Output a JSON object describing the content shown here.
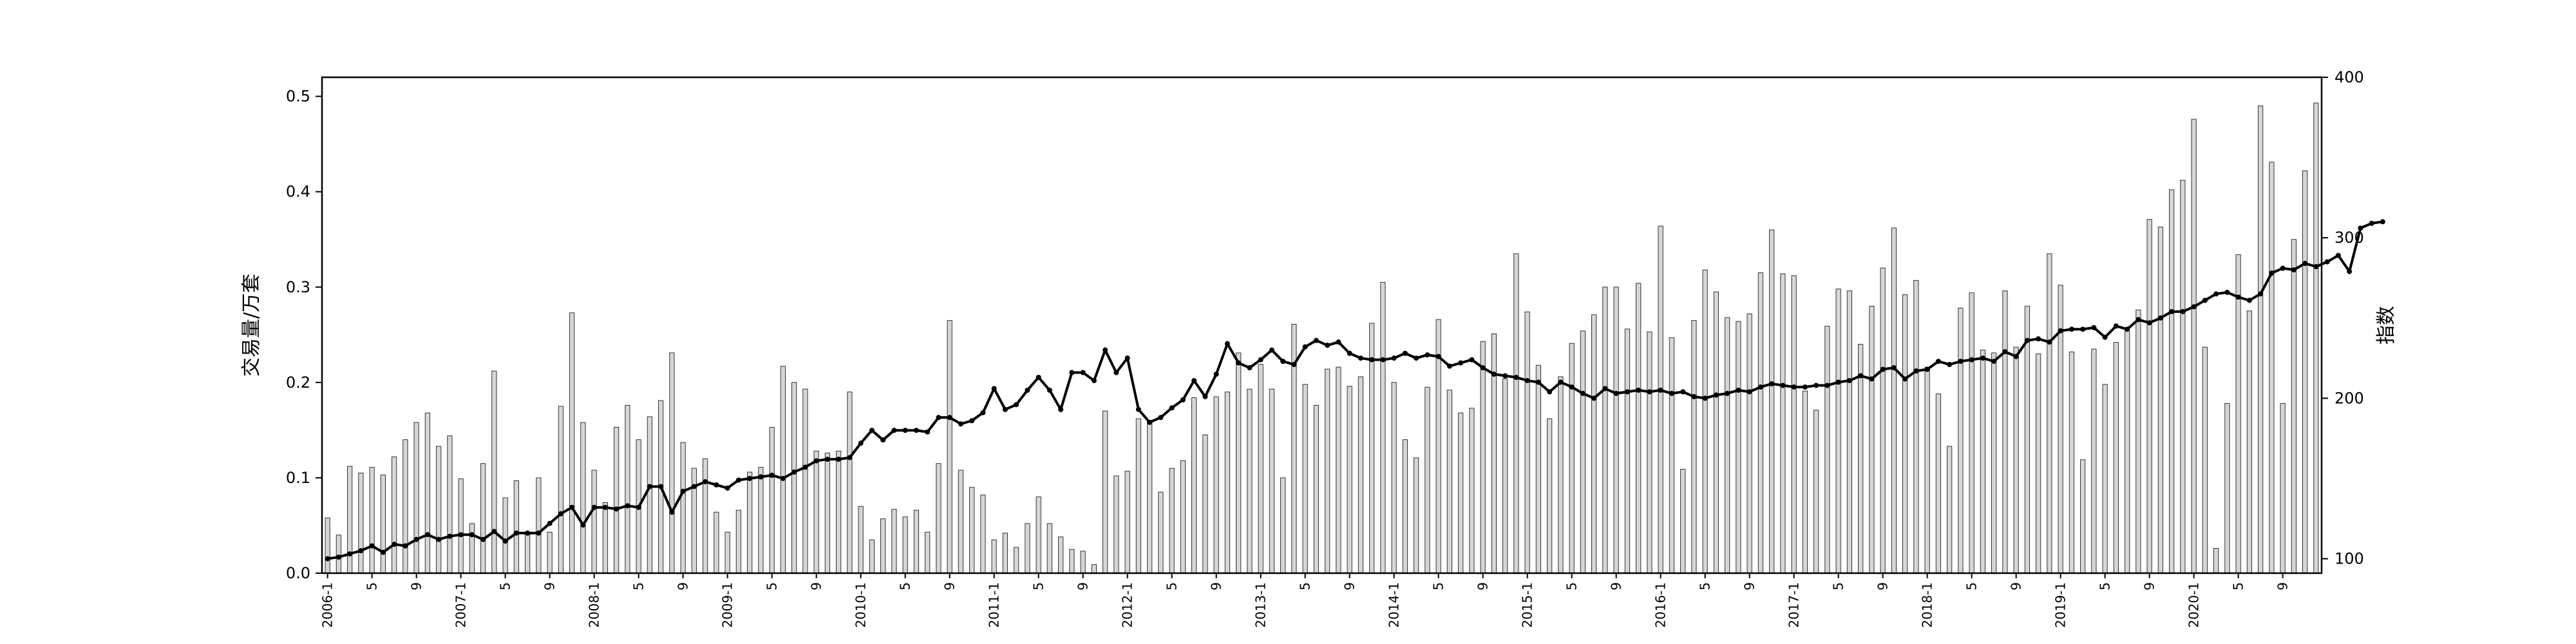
{
  "chart_data": {
    "type": "bar+line",
    "left_axis": {
      "label": "交易量/万套",
      "ylim": [
        0,
        0.52
      ],
      "ticks": [
        0.0,
        0.1,
        0.2,
        0.3,
        0.4,
        0.5
      ]
    },
    "right_axis": {
      "label": "指数",
      "ylim": [
        91,
        400
      ],
      "ticks": [
        100,
        200,
        300,
        400
      ]
    },
    "x_tick_labels": [
      "2006-1",
      "5",
      "9",
      "2007-1",
      "5",
      "9",
      "2008-1",
      "5",
      "9",
      "2009-1",
      "5",
      "9",
      "2010-1",
      "5",
      "9",
      "2011-1",
      "5",
      "9",
      "2012-1",
      "5",
      "9",
      "2013-1",
      "5",
      "9",
      "2014-1",
      "5",
      "9",
      "2015-1",
      "5",
      "9",
      "2016-1",
      "5",
      "9",
      "2017-1",
      "5",
      "9",
      "2018-1",
      "5",
      "9",
      "2019-1",
      "5",
      "9",
      "2020-1",
      "5",
      "9"
    ],
    "x_tick_months": [
      1,
      5,
      9,
      13,
      17,
      21,
      25,
      29,
      33,
      37,
      41,
      45,
      49,
      53,
      57,
      61,
      65,
      69,
      73,
      77,
      81,
      85,
      89,
      93,
      97,
      101,
      105,
      109,
      113,
      117,
      121,
      125,
      129,
      133,
      137,
      141,
      145,
      149,
      153,
      157,
      161,
      165,
      169,
      173,
      177
    ],
    "series": [
      {
        "type": "bar",
        "axis": "left",
        "values": [
          0.058,
          0.04,
          0.112,
          0.105,
          0.111,
          0.103,
          0.122,
          0.14,
          0.158,
          0.168,
          0.133,
          0.144,
          0.099,
          0.052,
          0.115,
          0.212,
          0.079,
          0.097,
          0.04,
          0.1,
          0.043,
          0.175,
          0.273,
          0.158,
          0.108,
          0.074,
          0.153,
          0.176,
          0.14,
          0.164,
          0.181,
          0.231,
          0.137,
          0.11,
          0.12,
          0.064,
          0.043,
          0.066,
          0.106,
          0.111,
          0.153,
          0.217,
          0.2,
          0.193,
          0.128,
          0.126,
          0.128,
          0.19,
          0.07,
          0.035,
          0.057,
          0.067,
          0.059,
          0.066,
          0.043,
          0.115,
          0.265,
          0.108,
          0.09,
          0.082,
          0.035,
          0.042,
          0.027,
          0.052,
          0.08,
          0.052,
          0.038,
          0.025,
          0.023,
          0.009,
          0.17,
          0.102,
          0.107,
          0.162,
          0.159,
          0.085,
          0.11,
          0.118,
          0.184,
          0.145,
          0.185,
          0.19,
          0.231,
          0.193,
          0.219,
          0.193,
          0.1,
          0.261,
          0.198,
          0.176,
          0.214,
          0.216,
          0.196,
          0.206,
          0.262,
          0.305,
          0.2,
          0.14,
          0.121,
          0.195,
          0.266,
          0.192,
          0.168,
          0.173,
          0.243,
          0.251,
          0.204,
          0.335,
          0.274,
          0.218,
          0.162,
          0.206,
          0.241,
          0.254,
          0.271,
          0.3,
          0.3,
          0.256,
          0.304,
          0.253,
          0.364,
          0.247,
          0.109,
          0.265,
          0.318,
          0.295,
          0.268,
          0.264,
          0.272,
          0.315,
          0.36,
          0.314,
          0.312,
          0.191,
          0.171,
          0.259,
          0.298,
          0.296,
          0.24,
          0.28,
          0.32,
          0.362,
          0.292,
          0.307,
          0.216,
          0.188,
          0.133,
          0.278,
          0.294,
          0.234,
          0.231,
          0.296,
          0.237,
          0.28,
          0.23,
          0.335,
          0.302,
          0.232,
          0.119,
          0.235,
          0.198,
          0.242,
          0.254,
          0.276,
          0.371,
          0.363,
          0.402,
          0.412,
          0.476,
          0.237,
          0.026,
          0.178,
          0.334,
          0.275,
          0.49,
          0.431,
          0.178,
          0.35,
          0.422,
          0.493
        ]
      },
      {
        "type": "line",
        "axis": "right",
        "values": [
          100,
          101,
          103,
          105,
          108,
          104,
          109,
          108,
          112,
          115,
          112,
          114,
          115,
          115,
          112,
          117,
          111,
          116,
          116,
          116,
          122,
          128,
          132,
          121,
          132,
          132,
          131,
          133,
          132,
          145,
          145,
          129,
          142,
          145,
          148,
          146,
          144,
          149,
          150,
          151,
          152,
          150,
          154,
          157,
          161,
          162,
          162,
          163,
          172,
          180,
          174,
          180,
          180,
          180,
          179,
          188,
          188,
          184,
          186,
          191,
          206,
          193,
          196,
          205,
          213,
          205,
          193,
          216,
          216,
          211,
          230,
          216,
          225,
          193,
          185,
          188,
          194,
          199,
          211,
          201,
          215,
          234,
          222,
          219,
          224,
          230,
          223,
          221,
          232,
          236,
          233,
          235,
          228,
          225,
          224,
          224,
          225,
          228,
          225,
          227,
          226,
          220,
          222,
          224,
          219,
          215,
          214,
          213,
          211,
          210,
          204,
          210,
          207,
          203,
          200,
          206,
          203,
          204,
          205,
          204,
          205,
          203,
          204,
          201,
          200,
          202,
          203,
          205,
          204,
          207,
          209,
          208,
          207,
          207,
          208,
          208,
          210,
          211,
          214,
          212,
          218,
          219,
          212,
          217,
          218,
          223,
          221,
          223,
          224,
          225,
          223,
          229,
          226,
          236,
          237,
          235,
          242,
          243,
          243,
          244,
          238,
          245,
          243,
          249,
          247,
          250,
          254,
          254,
          257,
          261,
          265,
          266,
          263,
          261,
          265,
          278,
          281,
          280,
          284,
          282,
          285,
          289,
          279,
          306,
          309,
          310
        ]
      }
    ],
    "grid": false
  }
}
